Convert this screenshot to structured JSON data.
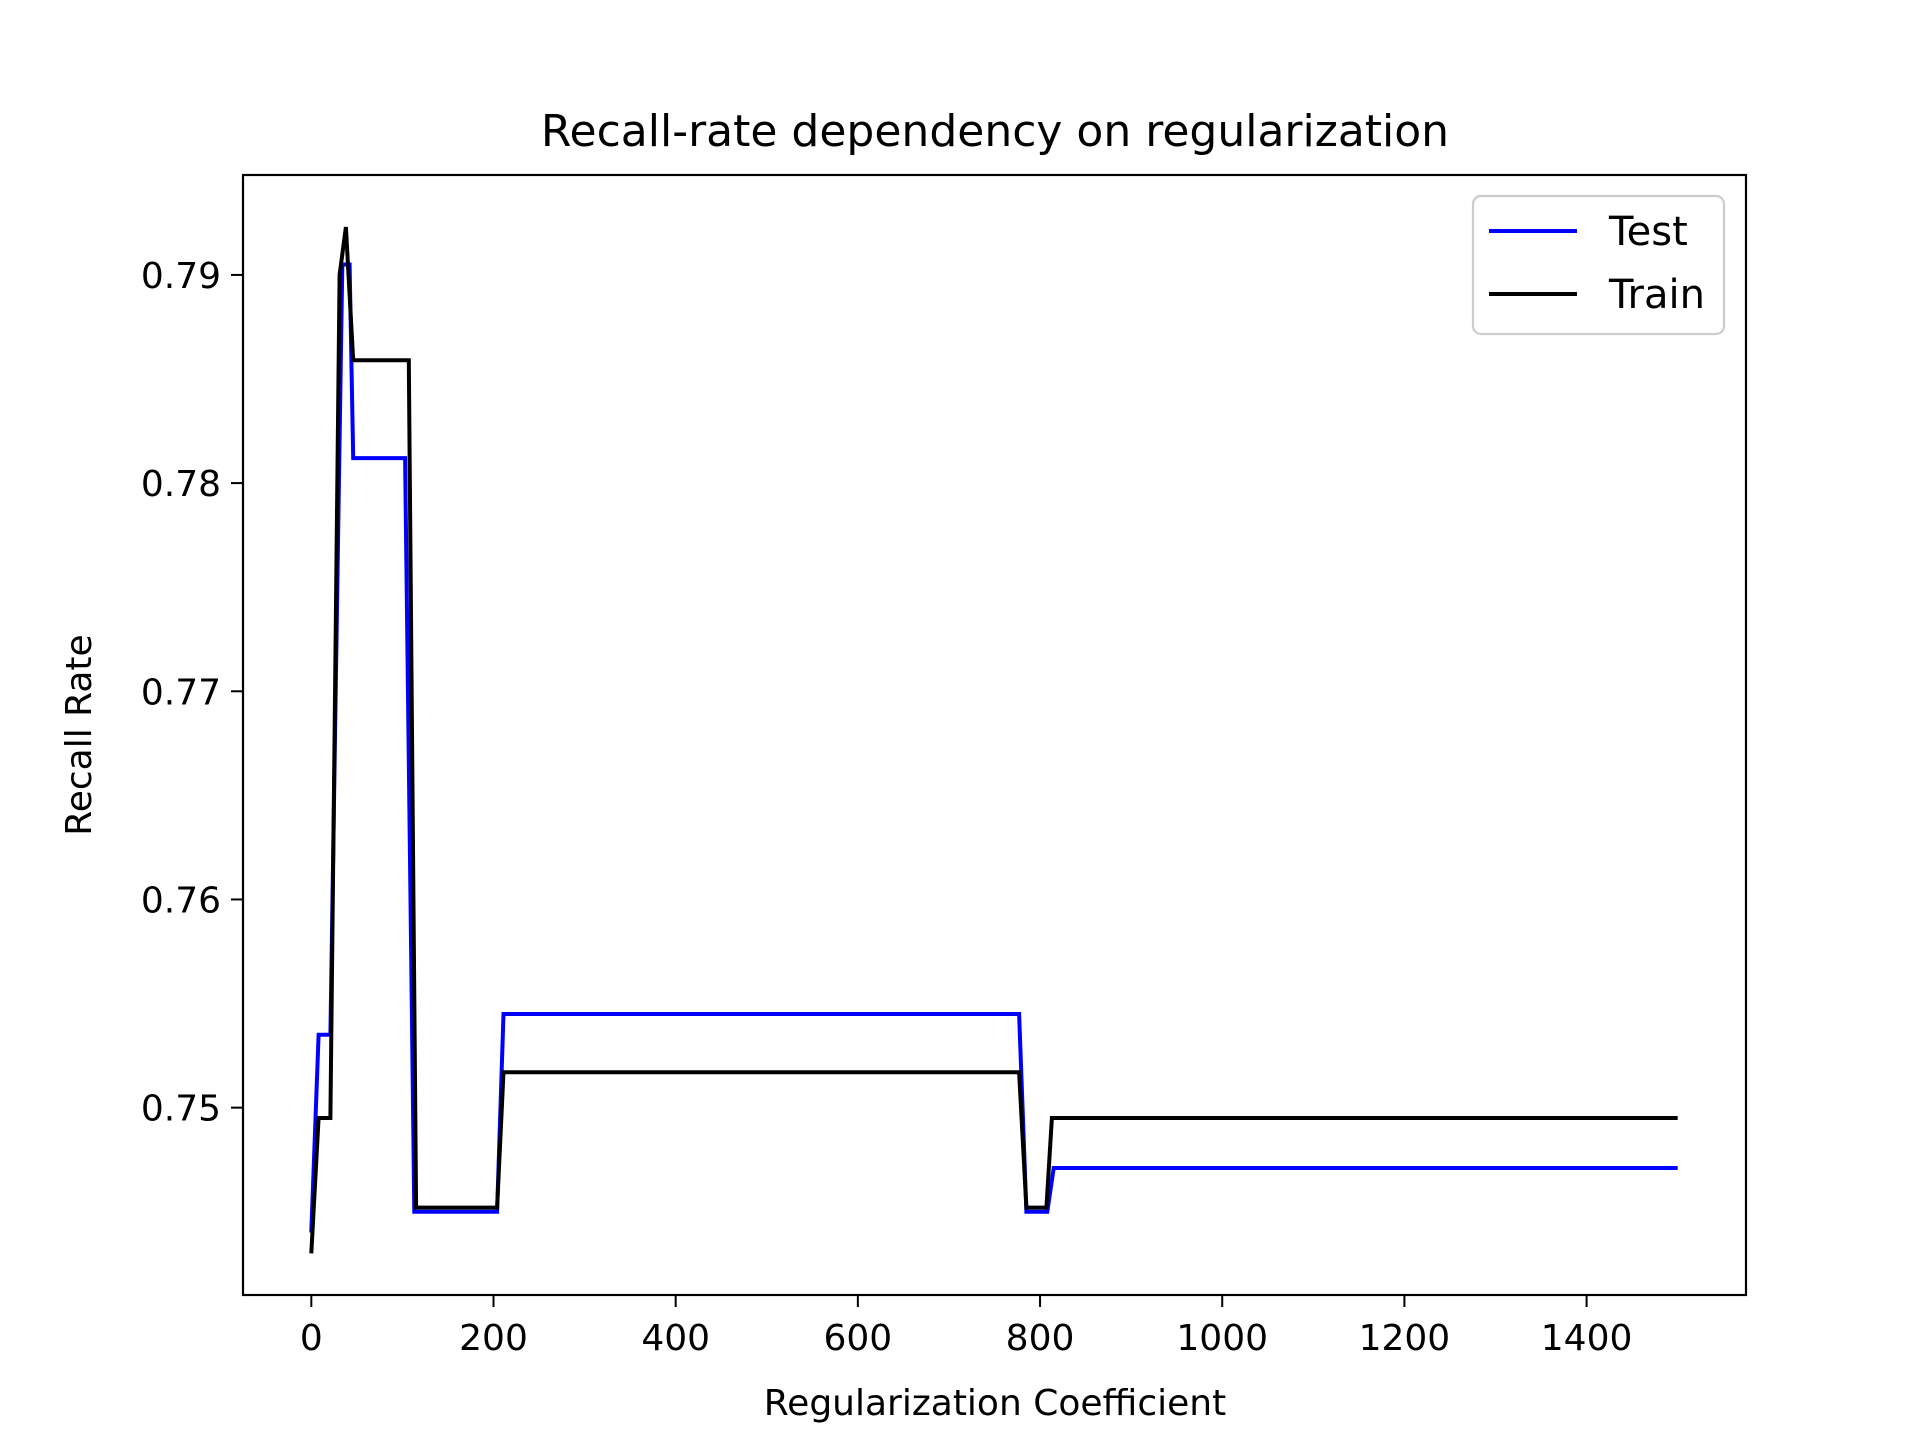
{
  "chart_data": {
    "type": "line",
    "title": "Recall-rate dependency on regularization",
    "xlabel": "Regularization Coefficient",
    "ylabel": "Recall Rate",
    "xlim": [
      -75,
      1575
    ],
    "ylim": [
      0.741,
      0.7948
    ],
    "xticks": [
      0,
      200,
      400,
      600,
      800,
      1000,
      1200,
      1400
    ],
    "yticks": [
      0.75,
      0.76,
      0.77,
      0.78,
      0.79
    ],
    "legend_position": "top-right",
    "grid": false,
    "series": [
      {
        "name": "Test",
        "color": "#0000ff",
        "points": [
          [
            0,
            0.744
          ],
          [
            8,
            0.7535
          ],
          [
            21,
            0.7535
          ],
          [
            34,
            0.7905
          ],
          [
            42,
            0.7905
          ],
          [
            46,
            0.7812
          ],
          [
            103,
            0.7812
          ],
          [
            113,
            0.745
          ],
          [
            204,
            0.745
          ],
          [
            211,
            0.7545
          ],
          [
            777,
            0.7545
          ],
          [
            785,
            0.745
          ],
          [
            808,
            0.745
          ],
          [
            815,
            0.7471
          ],
          [
            1500,
            0.7471
          ]
        ]
      },
      {
        "name": "Train",
        "color": "#000000",
        "points": [
          [
            0,
            0.743
          ],
          [
            8,
            0.7495
          ],
          [
            21,
            0.7495
          ],
          [
            31,
            0.79
          ],
          [
            38,
            0.7923
          ],
          [
            46,
            0.7859
          ],
          [
            107,
            0.7859
          ],
          [
            115,
            0.7452
          ],
          [
            204,
            0.7452
          ],
          [
            211,
            0.7517
          ],
          [
            777,
            0.7517
          ],
          [
            785,
            0.7452
          ],
          [
            807,
            0.7452
          ],
          [
            813,
            0.7495
          ],
          [
            1500,
            0.7495
          ]
        ]
      }
    ]
  }
}
